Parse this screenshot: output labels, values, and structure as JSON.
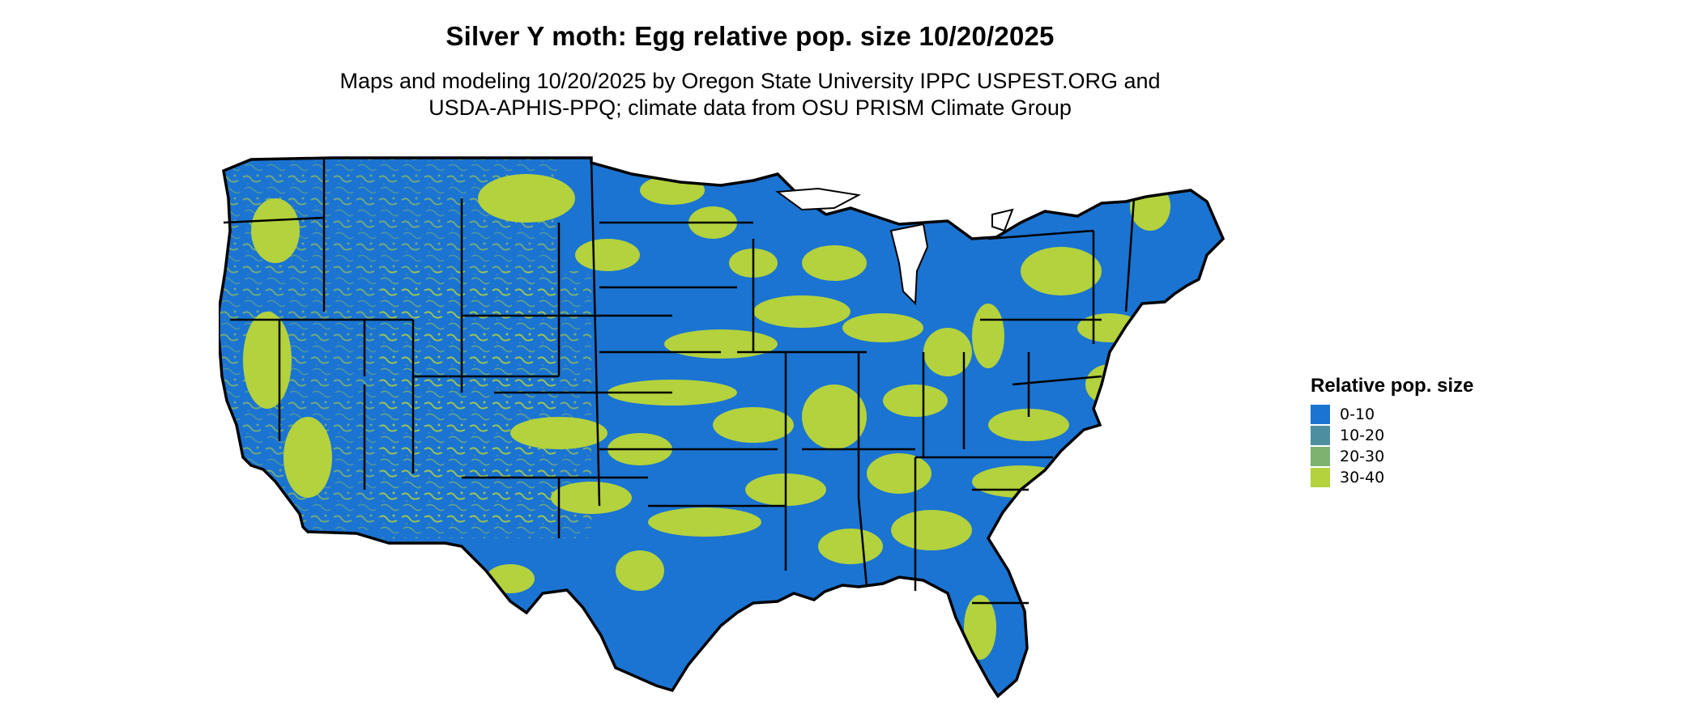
{
  "map": {
    "title": "Silver Y moth: Egg relative pop. size 10/20/2025",
    "subtitle_lines": [
      "Maps and modeling 10/20/2025 by Oregon State University IPPC USPEST.ORG and",
      "USDA-APHIS-PPQ; climate data from OSU PRISM Climate Group"
    ],
    "region": "Contiguous United States",
    "base_color": "#1b74d1",
    "border_color": "#000000"
  },
  "legend": {
    "title": "Relative pop. size",
    "items": [
      {
        "label": "0-10",
        "color": "#1b74d1"
      },
      {
        "label": "10-20",
        "color": "#4d8ea0"
      },
      {
        "label": "20-30",
        "color": "#7db270"
      },
      {
        "label": "30-40",
        "color": "#b3d23d"
      }
    ]
  }
}
